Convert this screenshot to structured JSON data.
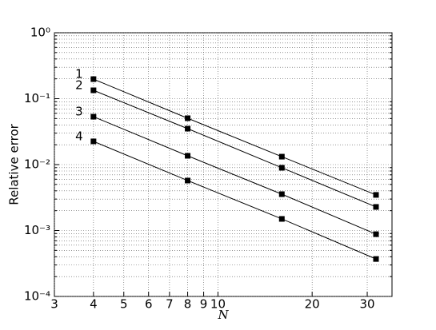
{
  "chart_data": {
    "type": "line",
    "x_label": "N",
    "y_label": "Relative error",
    "xlog": true,
    "ylog": true,
    "grid": true,
    "xlim": [
      3,
      36
    ],
    "ylim": [
      0.0001,
      1
    ],
    "xticks": [
      3,
      4,
      5,
      6,
      7,
      8,
      9,
      10,
      20,
      30
    ],
    "yticks": [
      {
        "value": 0.0001,
        "label": "10⁻⁴"
      },
      {
        "value": 0.001,
        "label": "10⁻³"
      },
      {
        "value": 0.01,
        "label": "10⁻²"
      },
      {
        "value": 0.1,
        "label": "10⁻¹"
      },
      {
        "value": 1,
        "label": "10⁰"
      }
    ],
    "yminorticks": [
      0.0002,
      0.0003,
      0.0004,
      0.0005,
      0.0006,
      0.0007,
      0.0008,
      0.0009,
      0.002,
      0.003,
      0.004,
      0.005,
      0.006,
      0.007,
      0.008,
      0.009,
      0.02,
      0.03,
      0.04,
      0.05,
      0.06,
      0.07,
      0.08,
      0.09,
      0.2,
      0.3,
      0.4,
      0.5,
      0.6,
      0.7,
      0.8,
      0.9
    ],
    "x": [
      4,
      8,
      16,
      32
    ],
    "series": [
      {
        "name": "1",
        "color": "#000000",
        "values": [
          0.198,
          0.0505,
          0.0132,
          0.00347
        ]
      },
      {
        "name": "2",
        "color": "#000000",
        "values": [
          0.134,
          0.0351,
          0.00895,
          0.00228
        ]
      },
      {
        "name": "3",
        "color": "#000000",
        "values": [
          0.0533,
          0.0136,
          0.00356,
          0.00088
        ]
      },
      {
        "name": "4",
        "color": "#000000",
        "values": [
          0.0225,
          0.00573,
          0.0015,
          0.00037
        ]
      }
    ]
  }
}
